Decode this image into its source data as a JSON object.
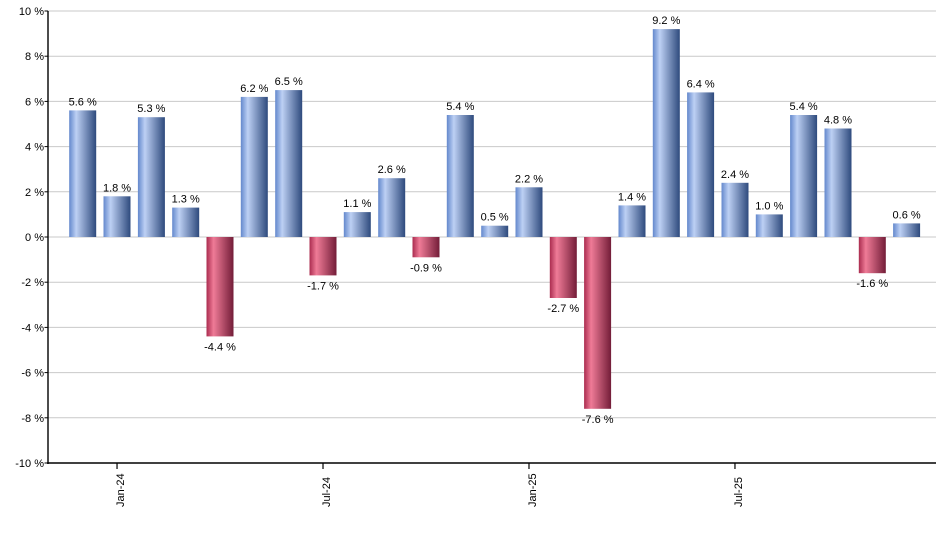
{
  "chart_data": {
    "type": "bar",
    "title": "",
    "xlabel": "",
    "ylabel": "",
    "ylim": [
      -10,
      10
    ],
    "y_tick_step": 2,
    "grid": true,
    "legend": null,
    "y_tick_values": [
      10,
      8,
      6,
      4,
      2,
      0,
      -2,
      -4,
      -6,
      -8,
      -10
    ],
    "y_tick_labels": [
      "10 %",
      "8 %",
      "6 %",
      "4 %",
      "2 %",
      "0 %",
      "-2 %",
      "-4 %",
      "-6 %",
      "-8 %",
      "-10 %"
    ],
    "values": [
      5.6,
      1.8,
      5.3,
      1.3,
      -4.4,
      6.2,
      6.5,
      -1.7,
      1.1,
      2.6,
      -0.9,
      5.4,
      0.5,
      2.2,
      -2.7,
      -7.6,
      1.4,
      9.2,
      6.4,
      2.4,
      1.0,
      5.4,
      4.8,
      -1.6,
      0.6
    ],
    "value_labels": [
      "5.6 %",
      "1.8 %",
      "5.3 %",
      "1.3 %",
      "-4.4 %",
      "6.2 %",
      "6.5 %",
      "-1.7 %",
      "1.1 %",
      "2.6 %",
      "-0.9 %",
      "5.4 %",
      "0.5 %",
      "2.2 %",
      "-2.7 %",
      "-7.6 %",
      "1.4 %",
      "9.2 %",
      "6.4 %",
      "2.4 %",
      "1.0 %",
      "5.4 %",
      "4.8 %",
      "-1.6 %",
      "0.6 %"
    ],
    "x_ticks": [
      {
        "bar_index": 1,
        "label": "Jan-24"
      },
      {
        "bar_index": 7,
        "label": "Jul-24"
      },
      {
        "bar_index": 13,
        "label": "Jan-25"
      },
      {
        "bar_index": 19,
        "label": "Jul-25"
      }
    ],
    "colors": {
      "positive_bar_gradient": [
        "#6388cc",
        "#bdd0f4",
        "#2e4a7d"
      ],
      "negative_bar_gradient": [
        "#aa2c4f",
        "#ef7b97",
        "#731d38"
      ],
      "gridline": "#c9c9c9",
      "axis": "#000000",
      "label_text": "#000000"
    }
  }
}
